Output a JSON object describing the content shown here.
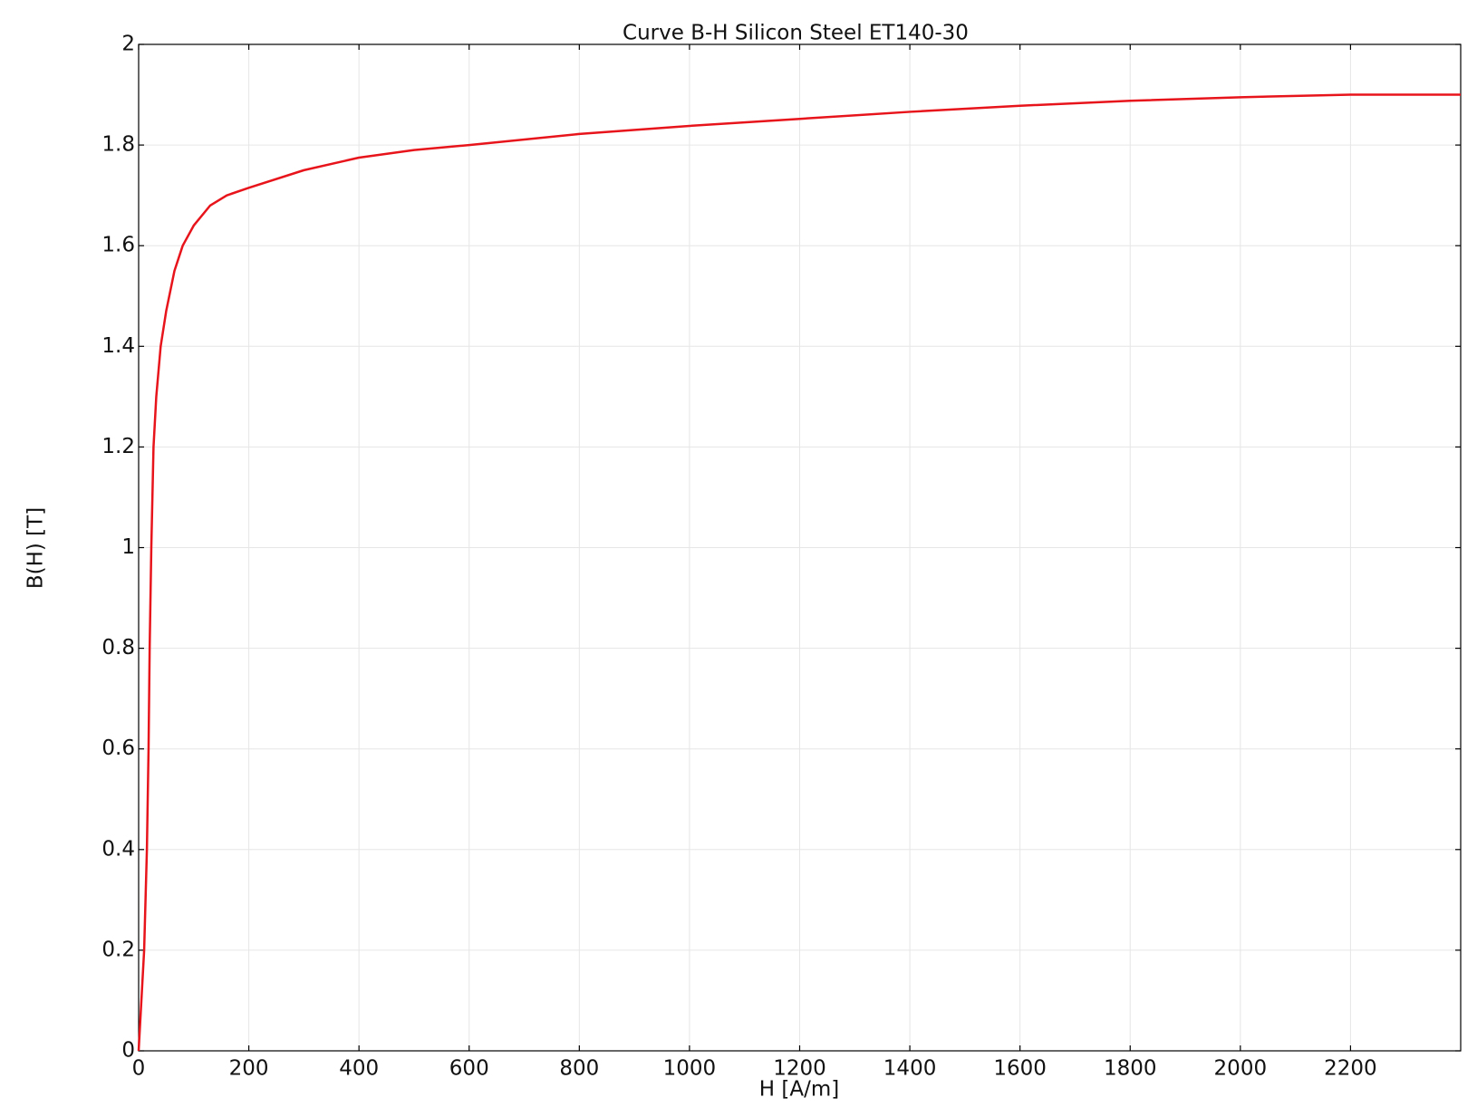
{
  "chart_data": {
    "type": "line",
    "title": "Curve B-H Silicon Steel ET140-30",
    "x_label": "H [A/m]",
    "y_label": "B(H) [T]",
    "x": [
      0,
      5,
      10,
      15,
      18,
      20,
      23,
      27,
      32,
      40,
      50,
      65,
      80,
      100,
      130,
      160,
      200,
      300,
      400,
      500,
      600,
      800,
      1000,
      1200,
      1400,
      1600,
      1800,
      2000,
      2200,
      2400
    ],
    "series": [
      {
        "color": "#e8141b",
        "values": [
          0,
          0.1,
          0.2,
          0.4,
          0.6,
          0.8,
          1.0,
          1.2,
          1.3,
          1.4,
          1.47,
          1.55,
          1.6,
          1.64,
          1.68,
          1.7,
          1.715,
          1.75,
          1.775,
          1.79,
          1.8,
          1.822,
          1.838,
          1.852,
          1.866,
          1.878,
          1.888,
          1.895,
          1.9,
          1.9
        ]
      }
    ],
    "xlim": [
      0,
      2400
    ],
    "xticks": [
      0,
      200,
      400,
      600,
      800,
      1000,
      1200,
      1400,
      1600,
      1800,
      2000,
      2200
    ],
    "ylim": [
      0,
      2
    ],
    "yticks": [
      0,
      0.2,
      0.4,
      0.6,
      0.8,
      1,
      1.2,
      1.4,
      1.6,
      1.8,
      2
    ],
    "grid": true
  }
}
